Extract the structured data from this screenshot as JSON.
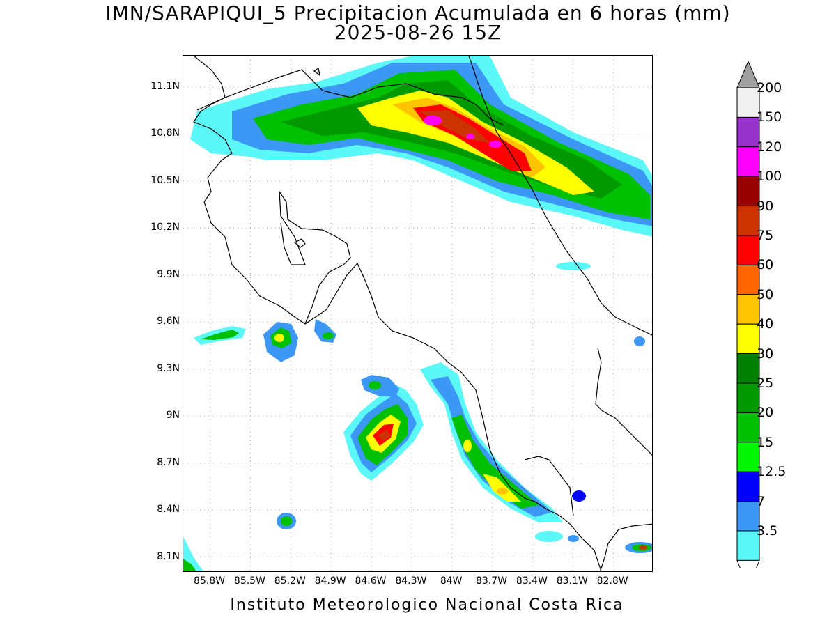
{
  "title": {
    "line1": "IMN/SARAPIQUI_5 Precipitacion Acumulada en 6 horas (mm)",
    "line2": "2025-08-26 15Z"
  },
  "axes": {
    "lat_labels": [
      "11.1N",
      "10.8N",
      "10.5N",
      "10.2N",
      "9.9N",
      "9.6N",
      "9.3N",
      "9N",
      "8.7N",
      "8.4N",
      "8.1N"
    ],
    "lon_labels": [
      "85.8W",
      "85.5W",
      "85.2W",
      "84.9W",
      "84.6W",
      "84.3W",
      "84W",
      "83.7W",
      "83.4W",
      "83.1W",
      "82.8W"
    ],
    "lat_values": [
      11.1,
      10.8,
      10.5,
      10.2,
      9.9,
      9.6,
      9.3,
      9.0,
      8.7,
      8.4,
      8.1
    ],
    "lon_values": [
      -85.8,
      -85.5,
      -85.2,
      -84.9,
      -84.6,
      -84.3,
      -84.0,
      -83.7,
      -83.4,
      -83.1,
      -82.8
    ],
    "lat_range": [
      8.0,
      11.3
    ],
    "lon_range": [
      -86.0,
      -82.5
    ],
    "grid": true
  },
  "colorbar": {
    "levels": [
      {
        "label": "3.5",
        "color": "#5cf7f7"
      },
      {
        "label": "7",
        "color": "#3d97f5"
      },
      {
        "label": "12.5",
        "color": "#0000ff"
      },
      {
        "label": "15",
        "color": "#00f500"
      },
      {
        "label": "20",
        "color": "#00c000"
      },
      {
        "label": "25",
        "color": "#009a00"
      },
      {
        "label": "30",
        "color": "#007f00"
      },
      {
        "label": "40",
        "color": "#ffff00"
      },
      {
        "label": "50",
        "color": "#ffc300"
      },
      {
        "label": "60",
        "color": "#ff6600"
      },
      {
        "label": "75",
        "color": "#ff0000"
      },
      {
        "label": "90",
        "color": "#cc3300"
      },
      {
        "label": "100",
        "color": "#990000"
      },
      {
        "label": "120",
        "color": "#ff00ff"
      },
      {
        "label": "150",
        "color": "#9a33cc"
      },
      {
        "label": "200",
        "color": "#f0f0f0"
      }
    ],
    "top_arrow_color": "#a0a0a0",
    "bottom_arrow_color": "#ffffff"
  },
  "footer": "Instituto Meteorologico Nacional Costa Rica"
}
